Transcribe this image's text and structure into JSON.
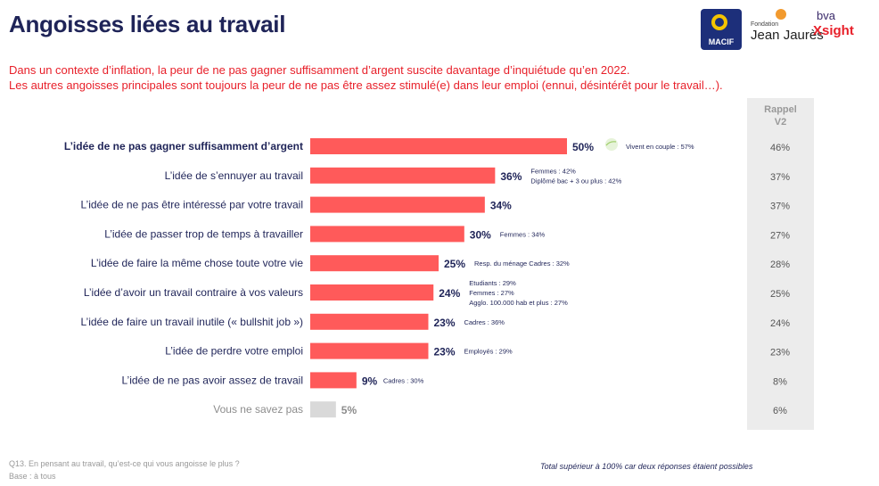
{
  "page": {
    "title": "Angoisses liées au travail",
    "subtitle_line1": "Dans un contexte d’inflation, la peur de ne pas gagner suffisamment d’argent suscite davantage d’inquiétude qu’en 2022.",
    "subtitle_line2": "Les autres angoisses principales sont toujours la peur de ne pas être assez stimulé(e) dans leur emploi (ennui, désintérêt pour le travail…).",
    "rappel_header_1": "Rappel",
    "rappel_header_2": "V2",
    "footer_question": "Q13. En pensant au travail, qu’est-ce qui vous angoisse le plus ?",
    "footer_base": "Base : à tous",
    "footer_note": "Total supérieur à 100% car deux réponses étaient possibles"
  },
  "logos": {
    "macif_label": "MACIF",
    "jj_small": "Fondation",
    "jj_name": "Jean Jaurès",
    "bva": "bva",
    "xsight": "Xsight"
  },
  "colors": {
    "bar": "#ff5a5a",
    "bar_dont_know": "#d9d9d9",
    "accent_red": "#e8202a",
    "navy": "#1f2458"
  },
  "chart_data": {
    "type": "bar",
    "orientation": "horizontal",
    "unit": "%",
    "categories": [
      "L’idée de ne pas gagner suffisamment d’argent",
      "L’idée de s’ennuyer au travail",
      "L’idée de ne pas être intéressé par votre travail",
      "L’idée de passer trop de temps à travailler",
      "L’idée de faire la même chose toute votre vie",
      "L’idée d’avoir un travail contraire à vos valeurs",
      "L’idée de faire un travail inutile (« bullshit job »)",
      "L’idée de perdre votre emploi",
      "L’idée de ne pas avoir assez de travail",
      "Vous ne savez pas"
    ],
    "values": [
      50,
      36,
      34,
      30,
      25,
      24,
      23,
      23,
      9,
      5
    ],
    "value_labels": [
      "50%",
      "36%",
      "34%",
      "30%",
      "25%",
      "24%",
      "23%",
      "23%",
      "9%",
      "5%"
    ],
    "rappel_v2": [
      "46%",
      "37%",
      "37%",
      "27%",
      "28%",
      "25%",
      "24%",
      "23%",
      "8%",
      "6%"
    ],
    "bold_category_index": 0,
    "grey_category_index": 9,
    "annotations": [
      [
        "Vivent en couple : 57%"
      ],
      [
        "Femmes :  42%",
        "Diplômé bac + 3 ou plus : 42%"
      ],
      [],
      [
        "Femmes :  34%"
      ],
      [
        "Resp. du ménage Cadres :  32%"
      ],
      [
        "Etudiants :  29%",
        "Femmes :  27%",
        "Agglo. 100.000 hab et plus : 27%"
      ],
      [
        "Cadres :  36%"
      ],
      [
        "Employés :  29%"
      ],
      [
        "Cadres :  30%"
      ],
      []
    ]
  }
}
